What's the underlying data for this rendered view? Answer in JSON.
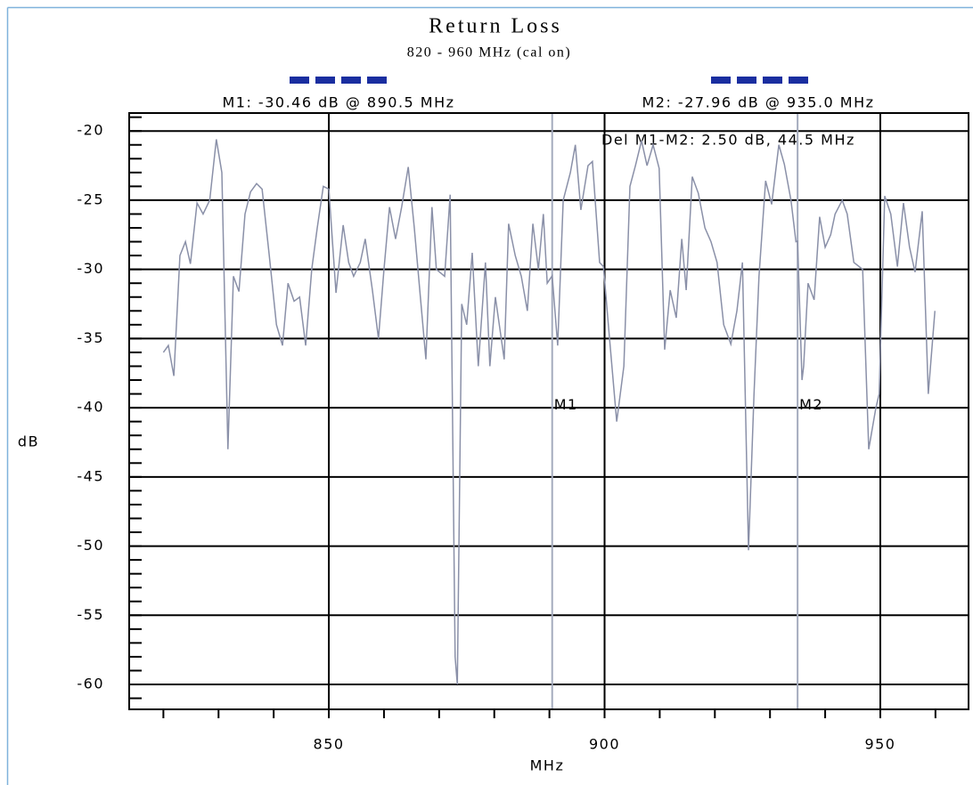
{
  "chart_data": {
    "type": "line",
    "title": "Return Loss",
    "subtitle": "820 - 960 MHz (cal on)",
    "x_label": "MHz",
    "y_label": "dB",
    "xlim": [
      813.8,
      966
    ],
    "ylim": [
      -61.8,
      -18.7
    ],
    "xticks": [
      850,
      900,
      950
    ],
    "yticks": [
      -20,
      -25,
      -30,
      -35,
      -40,
      -45,
      -50,
      -55,
      -60
    ],
    "xminorticks": [
      820,
      830,
      840,
      850,
      860,
      870,
      880,
      890,
      900,
      910,
      920,
      930,
      940,
      950,
      960
    ],
    "yminorticks": [
      -61,
      -60,
      -59,
      -58,
      -57,
      -56,
      -55,
      -54,
      -53,
      -52,
      -51,
      -50,
      -49,
      -48,
      -47,
      -46,
      -45,
      -44,
      -43,
      -42,
      -41,
      -40,
      -39,
      -38,
      -37,
      -36,
      -35,
      -34,
      -33,
      -32,
      -31,
      -30,
      -29,
      -28,
      -27,
      -26,
      -25,
      -24,
      -23,
      -22,
      -21,
      -20,
      -19
    ],
    "grid": true,
    "color": "#8a90a8",
    "x": [
      820.0,
      820.9,
      821.9,
      823.0,
      824.0,
      824.9,
      826.1,
      827.2,
      828.4,
      829.6,
      830.6,
      831.7,
      832.7,
      833.7,
      834.8,
      835.8,
      836.9,
      837.9,
      839.2,
      840.5,
      841.6,
      842.6,
      843.7,
      844.7,
      845.8,
      846.9,
      847.9,
      849.0,
      850.0,
      851.3,
      852.6,
      853.6,
      854.5,
      855.7,
      856.6,
      857.9,
      859.0,
      860.0,
      861.0,
      862.1,
      863.2,
      864.4,
      865.5,
      866.6,
      867.6,
      868.7,
      869.5,
      871.0,
      872.0,
      872.9,
      873.3,
      874.1,
      875.0,
      876.0,
      877.1,
      878.4,
      879.2,
      880.2,
      881.8,
      882.6,
      883.8,
      884.9,
      886.0,
      887.0,
      888.0,
      888.9,
      889.6,
      890.5,
      891.5,
      892.5,
      893.8,
      894.7,
      895.7,
      897.0,
      897.8,
      899.1,
      899.8,
      900.9,
      902.2,
      903.5,
      904.6,
      905.6,
      906.7,
      907.7,
      908.8,
      909.9,
      910.9,
      911.9,
      913.0,
      914.0,
      914.8,
      915.9,
      917.0,
      918.2,
      919.3,
      920.4,
      921.6,
      922.9,
      924.0,
      925.0,
      926.1,
      927.1,
      928.0,
      929.2,
      930.3,
      931.6,
      932.6,
      933.8,
      934.7,
      935.0,
      935.8,
      936.1,
      936.9,
      938.0,
      939.0,
      940.0,
      941.0,
      941.8,
      943.1,
      944.0,
      945.2,
      946.8,
      947.9,
      949.2,
      949.8,
      950.8,
      951.9,
      953.1,
      954.2,
      955.3,
      956.3,
      957.6,
      958.7,
      959.9
    ],
    "values": [
      -36,
      -35.5,
      -37.7,
      -29,
      -28,
      -29.6,
      -25.2,
      -26,
      -25,
      -20.6,
      -23,
      -43,
      -30.5,
      -31.6,
      -26,
      -24.4,
      -23.8,
      -24.2,
      -29,
      -34,
      -35.5,
      -31,
      -32.3,
      -32,
      -35.5,
      -30,
      -27,
      -24,
      -24.2,
      -31.7,
      -26.8,
      -29.5,
      -30.5,
      -29.5,
      -27.8,
      -31.5,
      -35,
      -30,
      -25.5,
      -27.8,
      -25.5,
      -22.6,
      -27,
      -32,
      -36.5,
      -25.5,
      -30,
      -30.5,
      -24.6,
      -58,
      -60,
      -32.5,
      -34,
      -28.8,
      -37,
      -29.5,
      -37,
      -32,
      -36.5,
      -26.7,
      -29,
      -30.5,
      -33,
      -26.7,
      -30,
      -26,
      -31,
      -30.46,
      -35.5,
      -25,
      -23,
      -21,
      -25.7,
      -22.5,
      -22.2,
      -29.5,
      -29.8,
      -35,
      -41,
      -37,
      -24,
      -22.5,
      -20.7,
      -22.5,
      -21,
      -22.7,
      -35.8,
      -31.5,
      -33.5,
      -27.8,
      -31.5,
      -23.3,
      -24.5,
      -27,
      -28,
      -29.5,
      -34,
      -35.4,
      -33,
      -29.5,
      -50.3,
      -39,
      -30.5,
      -23.6,
      -25.3,
      -21,
      -22.4,
      -25,
      -28,
      -27.96,
      -38,
      -37,
      -31,
      -32.2,
      -26.2,
      -28.4,
      -27.5,
      -26,
      -25,
      -26,
      -29.5,
      -30,
      -43,
      -40,
      -39,
      -24.7,
      -26,
      -29.8,
      -25.2,
      -28.4,
      -30.2,
      -25.8,
      -39,
      -33
    ],
    "markers": [
      {
        "label": "M1",
        "x": 890.5,
        "readout": "M1: -30.46 dB @ 890.5 MHz"
      },
      {
        "label": "M2",
        "x": 935.0,
        "readout": "M2: -27.96 dB @ 935.0 MHz"
      }
    ],
    "delta": "Del M1-M2: 2.50 dB, 44.5 MHz"
  }
}
